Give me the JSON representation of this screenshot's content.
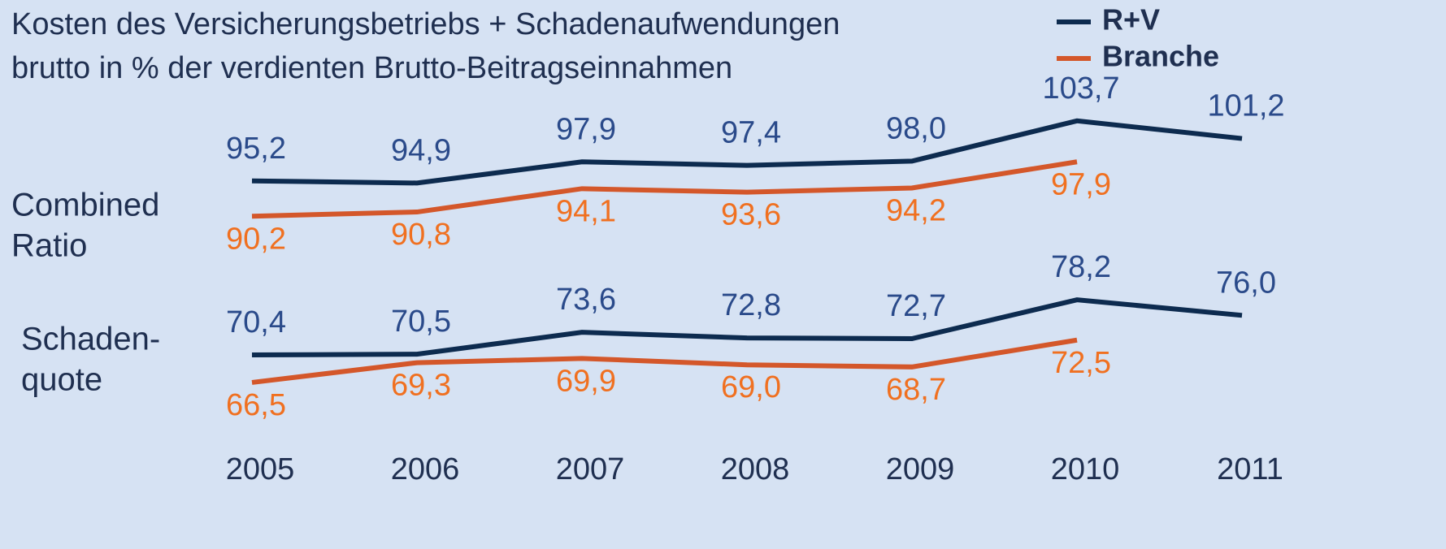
{
  "chart_data": {
    "type": "line",
    "title": [
      "Kosten des Versicherungsbetriebs + Schadenaufwendungen",
      "brutto in % der verdienten Brutto-Beitragseinnahmen"
    ],
    "categories": [
      "2005",
      "2006",
      "2007",
      "2008",
      "2009",
      "2010",
      "2011"
    ],
    "legend": [
      {
        "name": "R+V",
        "color": "#0d2b4f",
        "label_color": "#2a4a8a"
      },
      {
        "name": "Branche",
        "color": "#d4572a",
        "label_color": "#f07020"
      }
    ],
    "panels": [
      {
        "label": [
          "Combined",
          "Ratio"
        ],
        "series": [
          {
            "values": [
              95.2,
              94.9,
              97.9,
              97.4,
              98.0,
              103.7,
              101.2
            ],
            "value_labels": [
              "95,2",
              "94,9",
              "97,9",
              "97,4",
              "98,0",
              "103,7",
              "101,2"
            ]
          },
          {
            "values": [
              90.2,
              90.8,
              94.1,
              93.6,
              94.2,
              97.9,
              null
            ],
            "value_labels": [
              "90,2",
              "90,8",
              "94,1",
              "93,6",
              "94,2",
              "97,9",
              null
            ]
          }
        ]
      },
      {
        "label": [
          "Schaden-",
          "quote"
        ],
        "series": [
          {
            "values": [
              70.4,
              70.5,
              73.6,
              72.8,
              72.7,
              78.2,
              76.0
            ],
            "value_labels": [
              "70,4",
              "70,5",
              "73,6",
              "72,8",
              "72,7",
              "78,2",
              "76,0"
            ]
          },
          {
            "values": [
              66.5,
              69.3,
              69.9,
              69.0,
              68.7,
              72.5,
              null
            ],
            "value_labels": [
              "66,5",
              "69,3",
              "69,9",
              "69,0",
              "68,7",
              "72,5",
              null
            ]
          }
        ]
      }
    ]
  }
}
